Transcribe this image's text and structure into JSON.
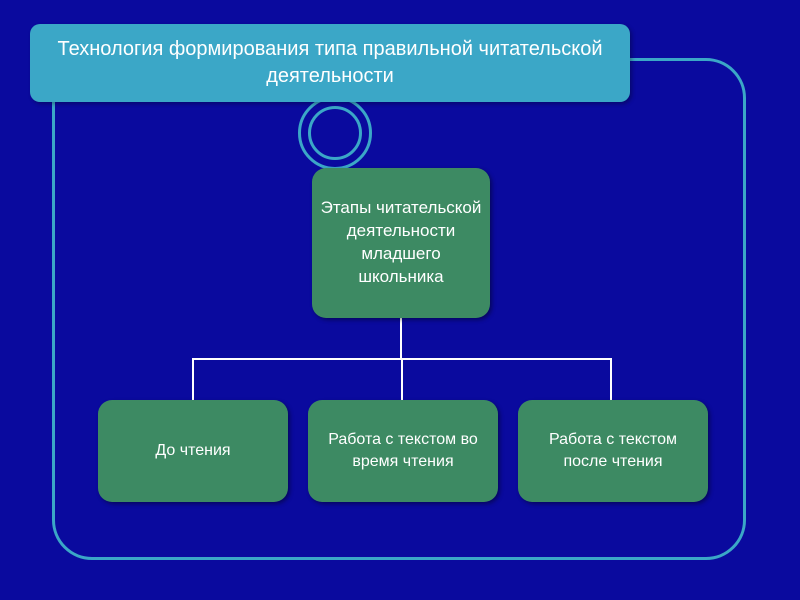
{
  "colors": {
    "background": "#0a0a9e",
    "banner_bg": "#3ba7c7",
    "banner_text": "#ffffff",
    "frame_border": "#3ba7c7",
    "ring_border": "#3ba7c7",
    "node_bg": "#3d8a63",
    "node_text": "#ffffff",
    "connector": "#ffffff"
  },
  "title": "Технология формирования типа правильной читательской деятельности",
  "diagram": {
    "type": "tree",
    "root": {
      "label": "Этапы читательской деятельности младшего школьника"
    },
    "children": [
      {
        "label": "До чтения"
      },
      {
        "label": "Работа с текстом во время чтения"
      },
      {
        "label": "Работа с текстом после чтения"
      }
    ]
  },
  "layout": {
    "slide_width": 800,
    "slide_height": 600,
    "title_fontsize": 20,
    "root_fontsize": 17,
    "child_fontsize": 16,
    "node_border_radius": 14,
    "frame_border_radius": 40
  }
}
